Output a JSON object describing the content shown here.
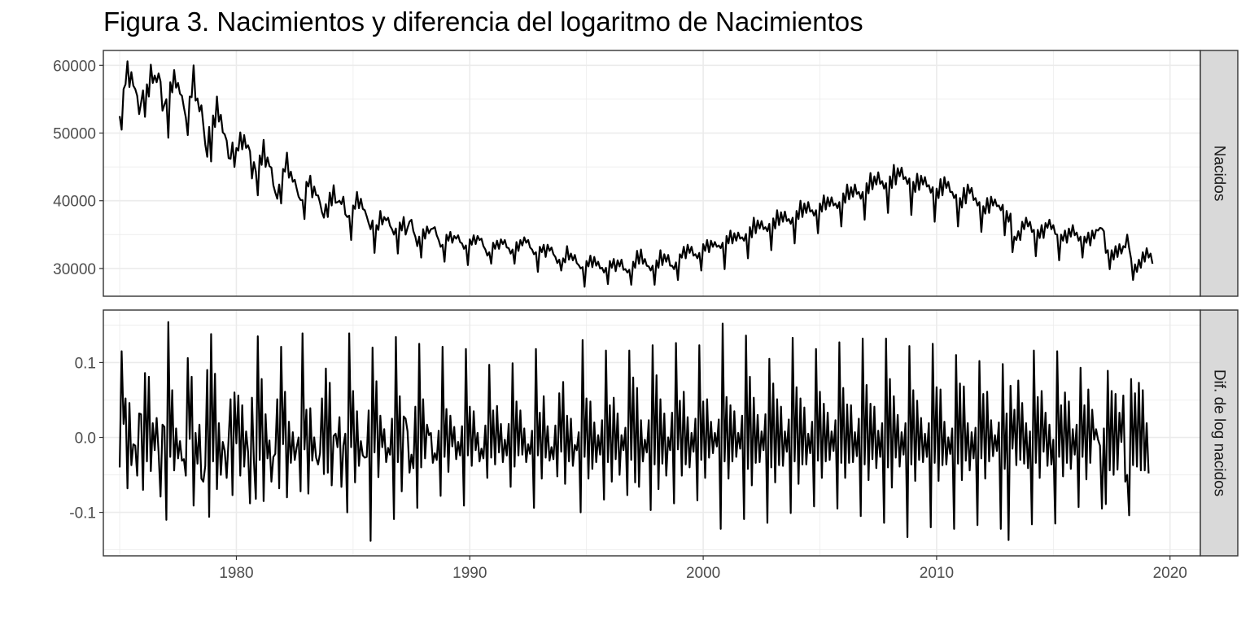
{
  "title": "Figura 3. Nacimientos y diferencia del logaritmo de Nacimientos",
  "colors": {
    "line": "#000000",
    "grid": "#ebebeb",
    "strip_fill": "#d9d9d9",
    "panel_border": "#333333",
    "tick_text": "#4d4d4d"
  },
  "chart_data": {
    "type": "line",
    "x_axis": {
      "range": [
        1974.3,
        2021.3
      ],
      "ticks": [
        1980,
        1990,
        2000,
        2010,
        2020
      ],
      "tick_labels": [
        "1980",
        "1990",
        "2000",
        "2010",
        "2020"
      ]
    },
    "panels": [
      {
        "strip_label": "Nacidos",
        "ylim": [
          25900,
          62200
        ],
        "y_ticks": [
          30000,
          40000,
          50000,
          60000
        ],
        "y_tick_labels": [
          "30000",
          "40000",
          "50000",
          "60000"
        ],
        "x_start": 1975.0,
        "x_step": 0.0833333,
        "values": [
          52500,
          50500,
          56500,
          57200,
          60600,
          56800,
          59000,
          57000,
          56500,
          55500,
          52800,
          54500,
          56300,
          52400,
          57200,
          55400,
          60100,
          57400,
          58500,
          57500,
          58800,
          57600,
          53300,
          54200,
          55000,
          49300,
          57500,
          56000,
          59300,
          56700,
          57400,
          55800,
          55500,
          53800,
          52300,
          49700,
          55400,
          55300,
          60000,
          54800,
          55100,
          53200,
          54100,
          51200,
          48300,
          46500,
          50900,
          45800,
          52600,
          50900,
          55400,
          51700,
          52700,
          50100,
          49800,
          48900,
          46300,
          46200,
          48600,
          45000,
          47800,
          47400,
          50100,
          47600,
          49700,
          47800,
          48200,
          47300,
          43300,
          45700,
          44300,
          40800,
          46700,
          45300,
          49000,
          45000,
          46400,
          45100,
          44900,
          42300,
          41200,
          40300,
          42400,
          39600,
          44700,
          44300,
          47100,
          43400,
          44300,
          42800,
          43100,
          41800,
          40600,
          40100,
          40100,
          37300,
          42800,
          42100,
          43700,
          40500,
          42100,
          40800,
          40800,
          39700,
          38300,
          37500,
          39500,
          37600,
          41200,
          39300,
          42300,
          39700,
          39800,
          40000,
          39500,
          40600,
          38000,
          37600,
          37800,
          34200,
          39300,
          38800,
          41300,
          38900,
          40300,
          38800,
          38600,
          37700,
          36700,
          35800,
          37100,
          32300,
          36400,
          35700,
          38500,
          36500,
          37600,
          37100,
          37500,
          36300,
          35800,
          35000,
          35900,
          32200,
          36800,
          35600,
          37600,
          35000,
          36000,
          36900,
          37200,
          35500,
          34700,
          33300,
          34700,
          31600,
          35800,
          34400,
          36200,
          35200,
          35800,
          35900,
          36100,
          34900,
          34200,
          33200,
          33500,
          31000,
          35000,
          34100,
          35400,
          33800,
          34800,
          34400,
          34900,
          33900,
          33700,
          32900,
          33400,
          30500,
          34300,
          33500,
          34900,
          33600,
          34800,
          34200,
          34400,
          33300,
          32800,
          31900,
          32400,
          30700,
          33800,
          32900,
          34100,
          32900,
          34300,
          33600,
          34200,
          33100,
          33000,
          32200,
          32800,
          30700,
          33900,
          32600,
          34200,
          33400,
          34600,
          33800,
          34200,
          33100,
          32800,
          32100,
          32400,
          29500,
          33200,
          32400,
          33500,
          31700,
          33500,
          32600,
          33100,
          32100,
          31700,
          30800,
          31300,
          29700,
          31500,
          30900,
          33300,
          31300,
          32200,
          31200,
          32000,
          30800,
          30500,
          30000,
          30200,
          27300,
          31100,
          30300,
          31900,
          30200,
          31700,
          30400,
          31000,
          30000,
          30100,
          29400,
          30100,
          27700,
          31100,
          30100,
          31400,
          29600,
          31200,
          30300,
          31300,
          29800,
          29900,
          29400,
          29800,
          27600,
          31000,
          30100,
          32600,
          30700,
          32800,
          30700,
          31400,
          30400,
          30300,
          29700,
          30400,
          27600,
          31200,
          30100,
          32700,
          30500,
          32100,
          31000,
          32000,
          30400,
          30400,
          29900,
          30900,
          28300,
          32100,
          31600,
          33200,
          31500,
          33500,
          32300,
          33200,
          31900,
          32100,
          31500,
          32300,
          29700,
          33600,
          32600,
          34200,
          32400,
          34100,
          33200,
          33900,
          33200,
          33400,
          33000,
          33800,
          29900,
          34800,
          33700,
          35600,
          33700,
          35200,
          34100,
          35300,
          34400,
          34600,
          34100,
          35100,
          31500,
          36100,
          34600,
          37500,
          35200,
          37100,
          35900,
          37000,
          35800,
          36100,
          35500,
          36600,
          32700,
          37400,
          35900,
          38600,
          36400,
          38300,
          36900,
          38400,
          37000,
          37300,
          36600,
          37500,
          33700,
          38500,
          37300,
          40000,
          37600,
          39600,
          38200,
          39800,
          38400,
          38600,
          37800,
          38600,
          35200,
          39600,
          38400,
          40800,
          38700,
          40500,
          39200,
          40500,
          39300,
          39600,
          38900,
          39800,
          36200,
          41100,
          39700,
          42400,
          40200,
          42000,
          40600,
          42400,
          41000,
          41300,
          40300,
          41300,
          37200,
          42600,
          41100,
          44100,
          41700,
          43600,
          42400,
          44200,
          42500,
          42900,
          41800,
          42600,
          38200,
          43600,
          41900,
          45300,
          42400,
          44800,
          43600,
          44900,
          43200,
          43500,
          42500,
          43300,
          37900,
          42800,
          41300,
          44000,
          41600,
          43700,
          42400,
          43500,
          42100,
          42300,
          41200,
          42000,
          36900,
          41800,
          40400,
          43200,
          40800,
          43500,
          41900,
          42800,
          41300,
          41300,
          40400,
          40900,
          36200,
          40400,
          39000,
          41900,
          39600,
          42400,
          41100,
          41900,
          40100,
          40400,
          39300,
          39800,
          35400,
          39200,
          38100,
          40400,
          38200,
          40600,
          39300,
          40200,
          39200,
          39300,
          38600,
          39400,
          34900,
          38500,
          36900,
          38100,
          32400,
          34700,
          34200,
          35500,
          34200,
          36900,
          35800,
          37500,
          36200,
          36900,
          35400,
          35700,
          31800,
          35700,
          34500,
          36400,
          34500,
          36700,
          36000,
          37200,
          35800,
          36400,
          35100,
          35000,
          31200,
          35000,
          34100,
          35600,
          33800,
          35900,
          34700,
          36400,
          34900,
          35300,
          34100,
          34700,
          31600,
          34700,
          33800,
          35300,
          33400,
          35600,
          34400,
          35700,
          35600,
          36000,
          35900,
          35500,
          32300,
          32700,
          29900,
          32700,
          31300,
          33300,
          31700,
          33600,
          32200,
          33300,
          33100,
          35000,
          33000,
          31400,
          28300,
          30600,
          29500,
          31300,
          30100,
          32400,
          31000,
          33000,
          31600,
          32200,
          30700
        ]
      },
      {
        "strip_label": "Dif. de log nacidos",
        "ylim": [
          -0.158,
          0.17
        ],
        "y_ticks": [
          -0.1,
          0.0,
          0.1
        ],
        "y_tick_labels": [
          "-0.1",
          "0.0",
          "0.1"
        ],
        "x_start": 1975.0,
        "x_step": 0.0833333,
        "values": [
          -0.04,
          0.115,
          0.018,
          0.052,
          -0.068,
          0.046,
          -0.037,
          -0.009,
          -0.011,
          -0.051,
          0.032,
          0.031,
          -0.07,
          0.086,
          -0.032,
          0.081,
          -0.045,
          0.019,
          -0.017,
          0.026,
          -0.02,
          -0.079,
          0.017,
          0.014,
          -0.11,
          0.154,
          -0.026,
          0.063,
          -0.044,
          0.012,
          -0.028,
          -0.005,
          -0.031,
          -0.029,
          -0.051,
          0.106,
          -0.002,
          0.081,
          -0.091,
          0.006,
          -0.035,
          0.017,
          -0.055,
          -0.059,
          -0.038,
          0.09,
          -0.106,
          0.138,
          -0.032,
          0.085,
          -0.069,
          0.019,
          -0.05,
          -0.006,
          -0.018,
          -0.054,
          -0.002,
          0.051,
          -0.077,
          0.06,
          -0.008,
          0.056,
          -0.051,
          0.043,
          -0.039,
          0.008,
          -0.019,
          -0.088,
          0.053,
          -0.031,
          -0.082,
          0.135,
          -0.03,
          0.078,
          -0.085,
          0.031,
          -0.028,
          -0.004,
          -0.059,
          -0.026,
          -0.022,
          0.051,
          -0.068,
          0.121,
          -0.009,
          0.061,
          -0.08,
          0.021,
          -0.034,
          0.007,
          -0.03,
          -0.013,
          0.0,
          -0.072,
          0.139,
          -0.016,
          0.037,
          -0.075,
          0.039,
          -0.031,
          0.0,
          -0.027,
          -0.036,
          -0.021,
          0.052,
          -0.049,
          0.092,
          -0.047,
          0.073,
          -0.064,
          0.002,
          0.005,
          -0.013,
          0.027,
          -0.066,
          -0.011,
          0.005,
          -0.1,
          0.139,
          -0.013,
          0.062,
          -0.06,
          0.035,
          -0.038,
          -0.005,
          -0.024,
          -0.027,
          -0.026,
          0.036,
          -0.138,
          0.12,
          -0.02,
          0.075,
          -0.053,
          0.029,
          -0.013,
          0.011,
          -0.033,
          -0.014,
          -0.023,
          0.025,
          -0.109,
          0.134,
          -0.033,
          0.055,
          -0.072,
          0.028,
          0.025,
          0.008,
          -0.047,
          -0.023,
          -0.041,
          0.041,
          -0.094,
          0.125,
          -0.04,
          0.051,
          -0.028,
          0.017,
          0.003,
          0.006,
          -0.034,
          -0.021,
          -0.03,
          0.009,
          -0.078,
          0.121,
          -0.026,
          0.038,
          -0.046,
          0.029,
          -0.012,
          0.014,
          -0.029,
          -0.006,
          -0.024,
          0.015,
          -0.091,
          0.118,
          -0.024,
          0.041,
          -0.038,
          0.035,
          -0.017,
          0.006,
          -0.032,
          -0.015,
          -0.028,
          0.016,
          -0.054,
          0.097,
          -0.027,
          0.036,
          -0.036,
          0.042,
          -0.02,
          0.018,
          -0.033,
          -0.003,
          -0.024,
          0.018,
          -0.066,
          0.099,
          -0.039,
          0.048,
          -0.024,
          0.036,
          -0.023,
          0.012,
          -0.033,
          -0.009,
          -0.022,
          0.009,
          -0.094,
          0.118,
          -0.024,
          0.033,
          -0.055,
          0.055,
          -0.027,
          0.015,
          -0.031,
          -0.013,
          -0.029,
          0.016,
          -0.052,
          0.059,
          -0.019,
          0.074,
          -0.062,
          0.029,
          -0.032,
          0.025,
          -0.038,
          -0.01,
          -0.017,
          0.007,
          -0.1,
          0.13,
          -0.026,
          0.052,
          -0.055,
          0.048,
          -0.042,
          0.02,
          -0.033,
          0.003,
          -0.023,
          0.023,
          -0.083,
          0.116,
          -0.033,
          0.043,
          -0.059,
          0.053,
          -0.029,
          0.032,
          -0.05,
          0.003,
          -0.017,
          0.013,
          -0.077,
          0.116,
          -0.03,
          0.08,
          -0.06,
          0.066,
          -0.066,
          0.023,
          -0.032,
          -0.003,
          -0.02,
          0.023,
          -0.097,
          0.123,
          -0.036,
          0.083,
          -0.069,
          0.051,
          -0.035,
          0.032,
          -0.051,
          0.0,
          -0.017,
          0.033,
          -0.088,
          0.126,
          -0.016,
          0.049,
          -0.051,
          0.061,
          -0.036,
          0.027,
          -0.04,
          0.006,
          -0.019,
          0.025,
          -0.084,
          0.123,
          -0.03,
          0.048,
          -0.054,
          0.051,
          -0.027,
          0.021,
          -0.021,
          0.006,
          -0.012,
          0.024,
          -0.122,
          0.152,
          -0.032,
          0.054,
          -0.055,
          0.043,
          -0.032,
          0.035,
          -0.026,
          0.006,
          -0.015,
          0.029,
          -0.109,
          0.136,
          -0.042,
          0.081,
          -0.064,
          0.053,
          -0.034,
          0.03,
          -0.033,
          0.008,
          -0.017,
          0.031,
          -0.114,
          0.105,
          -0.04,
          0.072,
          -0.06,
          0.051,
          -0.037,
          0.041,
          -0.038,
          0.008,
          -0.019,
          0.024,
          -0.101,
          0.133,
          -0.032,
          0.067,
          -0.062,
          0.052,
          -0.036,
          0.04,
          -0.036,
          0.005,
          -0.021,
          0.021,
          -0.092,
          0.118,
          -0.031,
          0.061,
          -0.054,
          0.045,
          -0.032,
          0.033,
          -0.03,
          0.008,
          -0.018,
          0.023,
          -0.095,
          0.127,
          -0.034,
          0.066,
          -0.054,
          0.044,
          -0.034,
          0.043,
          -0.033,
          0.007,
          -0.025,
          0.025,
          -0.105,
          0.132,
          -0.036,
          0.07,
          -0.057,
          0.045,
          -0.029,
          0.041,
          -0.041,
          0.009,
          -0.026,
          0.019,
          -0.114,
          0.132,
          -0.04,
          0.078,
          -0.067,
          0.055,
          -0.027,
          0.03,
          -0.039,
          0.007,
          -0.023,
          0.019,
          -0.133,
          0.122,
          -0.036,
          0.063,
          -0.058,
          0.049,
          -0.03,
          0.026,
          -0.033,
          0.005,
          -0.026,
          0.019,
          -0.12,
          0.125,
          -0.034,
          0.067,
          -0.058,
          0.064,
          -0.037,
          0.021,
          -0.036,
          0.0,
          -0.022,
          0.012,
          -0.122,
          0.11,
          -0.035,
          0.072,
          -0.057,
          0.068,
          -0.031,
          0.019,
          -0.044,
          0.007,
          -0.028,
          0.013,
          -0.117,
          0.102,
          -0.028,
          0.058,
          -0.055,
          0.061,
          -0.032,
          0.023,
          -0.025,
          0.003,
          -0.018,
          0.02,
          -0.122,
          0.098,
          -0.042,
          0.032,
          -0.137,
          0.069,
          -0.015,
          0.037,
          -0.037,
          0.076,
          -0.03,
          0.046,
          -0.035,
          0.019,
          -0.041,
          0.008,
          -0.116,
          0.116,
          -0.034,
          0.054,
          -0.054,
          0.062,
          -0.019,
          0.033,
          -0.038,
          0.017,
          -0.036,
          -0.003,
          -0.115,
          0.115,
          -0.026,
          0.043,
          -0.052,
          0.06,
          -0.034,
          0.048,
          -0.042,
          0.011,
          -0.023,
          0.017,
          -0.093,
          0.093,
          -0.026,
          0.043,
          -0.056,
          0.064,
          -0.034,
          0.037,
          -0.003,
          0.011,
          -0.003,
          -0.011,
          -0.095,
          0.012,
          -0.089,
          0.089,
          -0.044,
          0.062,
          -0.05,
          0.058,
          -0.043,
          0.033,
          -0.006,
          0.056,
          -0.059,
          -0.05,
          -0.104,
          0.078,
          -0.037,
          0.059,
          -0.039,
          0.073,
          -0.044,
          0.063,
          -0.044,
          0.019,
          -0.048
        ]
      }
    ]
  }
}
